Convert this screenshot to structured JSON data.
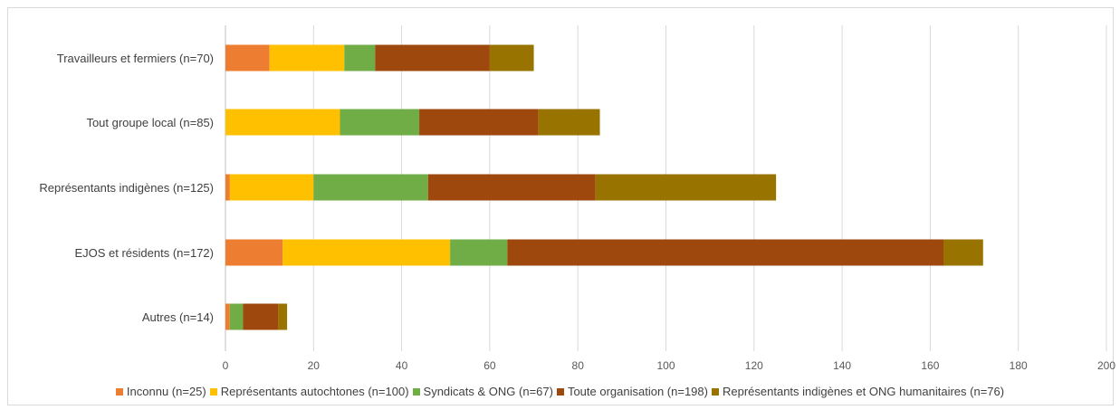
{
  "chart_data": {
    "type": "bar",
    "orientation": "horizontal",
    "stacked": true,
    "categories": [
      "Travailleurs et fermiers (n=70)",
      "Tout groupe local (n=85)",
      "Représentants indigènes (n=125)",
      "EJOS et résidents (n=172)",
      "Autres (n=14)"
    ],
    "series": [
      {
        "name": "Inconnu (n=25)",
        "color": "#ED7D31",
        "values": [
          10,
          0,
          1,
          13,
          1
        ]
      },
      {
        "name": "Représentants autochtones (n=100)",
        "color": "#FFC000",
        "values": [
          17,
          26,
          19,
          38,
          0
        ]
      },
      {
        "name": "Syndicats & ONG (n=67)",
        "color": "#70AD47",
        "values": [
          7,
          18,
          26,
          13,
          3
        ]
      },
      {
        "name": "Toute organisation (n=198)",
        "color": "#9E480E",
        "values": [
          26,
          27,
          38,
          99,
          8
        ]
      },
      {
        "name": "Représentants indigènes et ONG humanitaires (n=76)",
        "color": "#997300",
        "values": [
          10,
          14,
          41,
          9,
          2
        ]
      }
    ],
    "xlim": [
      0,
      200
    ],
    "xticks": [
      0,
      20,
      40,
      60,
      80,
      100,
      120,
      140,
      160,
      180,
      200
    ],
    "grid": true,
    "legend_position": "bottom",
    "title": "",
    "xlabel": "",
    "ylabel": ""
  }
}
